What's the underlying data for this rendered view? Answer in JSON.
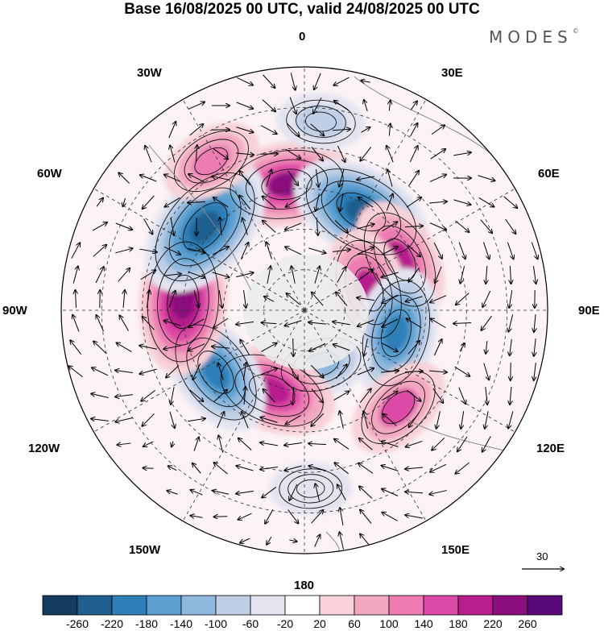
{
  "title": "Base 16/08/2025 00 UTC, valid 24/08/2025 00 UTC",
  "logo": "MODES",
  "logo_mark": "©",
  "longitude_labels": {
    "lon_0": "0",
    "lon_30e": "30E",
    "lon_60e": "60E",
    "lon_90e": "90E",
    "lon_120e": "120E",
    "lon_150e": "150E",
    "lon_180": "180",
    "lon_150w": "150W",
    "lon_120w": "120W",
    "lon_90w": "90W",
    "lon_60w": "60W",
    "lon_30w": "30W"
  },
  "vector_scale": "30",
  "colorbar": {
    "colors": [
      "#143c5e",
      "#1f5f8f",
      "#2f7fb8",
      "#5a9fd0",
      "#8fb8de",
      "#c0cfe6",
      "#e4e4f1",
      "#ffffff",
      "#f8d2d8",
      "#f2a8c0",
      "#ec7cb2",
      "#dc48a6",
      "#b81f8c",
      "#8c0f7e",
      "#5a0a78"
    ],
    "labels": [
      "-260",
      "-220",
      "-180",
      "-140",
      "-100",
      "-60",
      "-20",
      "20",
      "60",
      "100",
      "140",
      "180",
      "220",
      "260"
    ]
  },
  "anomaly_centers": [
    {
      "lon": -8,
      "lat": -43,
      "value": 220
    },
    {
      "lon": 30,
      "lat": -48,
      "value": -240
    },
    {
      "lon": 62,
      "lat": -50,
      "value": 180
    },
    {
      "lon": 72,
      "lat": -65,
      "value": 180
    },
    {
      "lon": 104,
      "lat": -55,
      "value": -200
    },
    {
      "lon": 136,
      "lat": -40,
      "value": 140
    },
    {
      "lon": 163,
      "lat": -69,
      "value": -120
    },
    {
      "lon": -158,
      "lat": -58,
      "value": 200
    },
    {
      "lon": -125,
      "lat": -50,
      "value": -200
    },
    {
      "lon": -86,
      "lat": -45,
      "value": 240
    },
    {
      "lon": -50,
      "lat": -42,
      "value": -260
    },
    {
      "lon": -32,
      "lat": -25,
      "value": 120
    },
    {
      "lon": 178,
      "lat": -24,
      "value": -60
    },
    {
      "lon": 5,
      "lat": -20,
      "value": -80
    }
  ]
}
